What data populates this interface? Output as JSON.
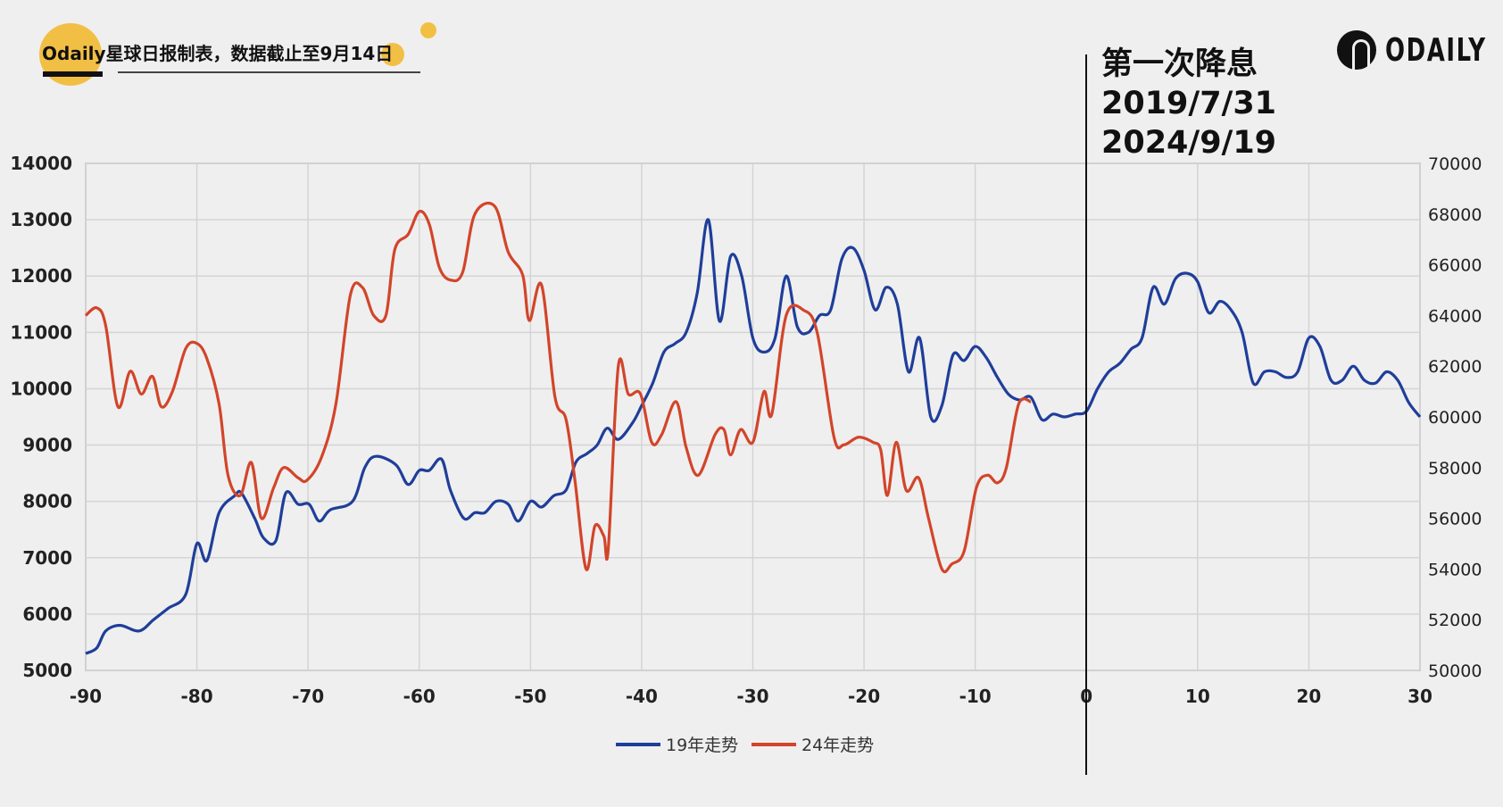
{
  "header": {
    "brand": "Odaily",
    "title": "星球日报制表，数据截止至9月14日"
  },
  "annotation": {
    "line1": "第一次降息",
    "line2": "2019/7/31",
    "line3": "2024/9/19",
    "x": 0
  },
  "logo_text": "ODAILY",
  "colors": {
    "series_2019": "#1f3e9a",
    "series_2024": "#d2452a",
    "accent": "#f2bf45",
    "background": "#efefef"
  },
  "chart_data": {
    "type": "line",
    "xlim": [
      -90,
      30
    ],
    "x_ticks": [
      "-90",
      "-80",
      "-70",
      "-60",
      "-50",
      "-40",
      "-30",
      "-20",
      "-10",
      "0",
      "10",
      "20",
      "30"
    ],
    "y_left": {
      "lim": [
        5000,
        14000
      ],
      "ticks": [
        "5000",
        "6000",
        "7000",
        "8000",
        "9000",
        "10000",
        "11000",
        "12000",
        "13000",
        "14000"
      ]
    },
    "y_right": {
      "lim": [
        50000,
        70000
      ],
      "ticks": [
        "50000",
        "52000",
        "54000",
        "56000",
        "58000",
        "60000",
        "62000",
        "64000",
        "66000",
        "68000",
        "70000"
      ]
    },
    "grid": true,
    "legend": "bottom",
    "series": [
      {
        "name": "19年走势",
        "axis": "left",
        "x": [
          -90,
          -89,
          -88.2,
          -86.9,
          -85.2,
          -83.9,
          -82.6,
          -81,
          -80,
          -79.1,
          -78,
          -76.6,
          -76,
          -74.8,
          -74,
          -72.9,
          -72,
          -70.9,
          -69.9,
          -69,
          -68,
          -66,
          -64.9,
          -63.9,
          -62.1,
          -61,
          -60,
          -59.1,
          -58,
          -57.2,
          -56,
          -55,
          -54.1,
          -53.1,
          -52,
          -51.1,
          -50,
          -49,
          -47.9,
          -46.8,
          -45.9,
          -44.9,
          -44,
          -43.1,
          -42.1,
          -40.8,
          -40,
          -39,
          -38,
          -37,
          -36,
          -35,
          -34,
          -33,
          -32,
          -31,
          -30,
          -29,
          -28,
          -27,
          -26,
          -25,
          -24,
          -23,
          -22,
          -21,
          -20,
          -19,
          -18,
          -17,
          -16,
          -15,
          -14,
          -13,
          -12,
          -11,
          -10,
          -9,
          -8,
          -7,
          -6,
          -5,
          -4,
          -3,
          -2,
          -1,
          0,
          1,
          2,
          3,
          4,
          5,
          6,
          7,
          8,
          9,
          10,
          11,
          12,
          13,
          14,
          15,
          16,
          17,
          18,
          19,
          20,
          21,
          22,
          23,
          24,
          25,
          26,
          27,
          28,
          29,
          30
        ],
        "values": [
          5300,
          5400,
          5700,
          5800,
          5700,
          5900,
          6100,
          6350,
          7250,
          6950,
          7800,
          8100,
          8150,
          7700,
          7350,
          7300,
          8150,
          7950,
          7950,
          7650,
          7850,
          8000,
          8600,
          8800,
          8650,
          8300,
          8550,
          8550,
          8750,
          8200,
          7700,
          7800,
          7800,
          8000,
          7950,
          7650,
          8000,
          7900,
          8100,
          8200,
          8700,
          8850,
          9000,
          9300,
          9100,
          9400,
          9700,
          10100,
          10650,
          10800,
          11000,
          11700,
          13000,
          11200,
          12350,
          12000,
          10900,
          10650,
          10900,
          12000,
          11100,
          11000,
          11300,
          11400,
          12300,
          12500,
          12100,
          11400,
          11800,
          11500,
          10300,
          10900,
          9500,
          9700,
          10600,
          10500,
          10750,
          10550,
          10200,
          9900,
          9800,
          9850,
          9450,
          9550,
          9500,
          9550,
          9600,
          10000,
          10300,
          10450,
          10700,
          10900,
          11800,
          11500,
          11950,
          12050,
          11900,
          11350,
          11550,
          11400,
          11000,
          10100,
          10300,
          10300,
          10200,
          10300,
          10900,
          10750,
          10150,
          10150,
          10400,
          10150,
          10100,
          10300,
          10150,
          9750,
          9500
        ]
      },
      {
        "name": "24年走势",
        "axis": "right",
        "x": [
          -90,
          -89,
          -88.2,
          -87.1,
          -86,
          -85,
          -84,
          -83.2,
          -82.2,
          -81,
          -80,
          -79.1,
          -78,
          -77.2,
          -76.1,
          -75.1,
          -74.2,
          -73.1,
          -72.2,
          -70.9,
          -70.1,
          -68.8,
          -67.5,
          -66.2,
          -65.1,
          -64.1,
          -63,
          -62.2,
          -61,
          -60,
          -59.1,
          -58.2,
          -57.2,
          -56.1,
          -55,
          -53.2,
          -52,
          -50.7,
          -50.1,
          -49,
          -47.8,
          -46.8,
          -46,
          -45,
          -44.2,
          -43.4,
          -43,
          -42.1,
          -41.2,
          -40.1,
          -39.1,
          -38.2,
          -36.9,
          -36,
          -34.9,
          -33.4,
          -32.6,
          -32,
          -31.1,
          -30,
          -29,
          -28.3,
          -27,
          -25.4,
          -24.2,
          -22.7,
          -21.8,
          -20.5,
          -19.2,
          -18.5,
          -17.9,
          -17.1,
          -16.2,
          -15.1,
          -14.2,
          -13,
          -12.1,
          -11,
          -9.9,
          -8.9,
          -8,
          -7.2,
          -6.1,
          -5
        ],
        "values": [
          64000,
          64300,
          63600,
          60400,
          61800,
          60900,
          61600,
          60400,
          61000,
          62700,
          62900,
          62300,
          60500,
          57700,
          56900,
          58200,
          56000,
          57200,
          58000,
          57600,
          57500,
          58400,
          60500,
          64800,
          65100,
          64000,
          64000,
          66600,
          67200,
          68100,
          67600,
          65900,
          65400,
          65700,
          68000,
          68300,
          66500,
          65600,
          63800,
          65200,
          60800,
          59900,
          57500,
          54000,
          55700,
          55300,
          54800,
          62000,
          60900,
          60900,
          59000,
          59300,
          60600,
          58800,
          57700,
          59300,
          59500,
          58500,
          59500,
          59000,
          61000,
          60100,
          64000,
          64200,
          63300,
          59200,
          58900,
          59200,
          59000,
          58700,
          56900,
          59000,
          57100,
          57600,
          56000,
          54000,
          54200,
          54700,
          57200,
          57700,
          57400,
          58000,
          60500,
          60600
        ]
      }
    ]
  }
}
